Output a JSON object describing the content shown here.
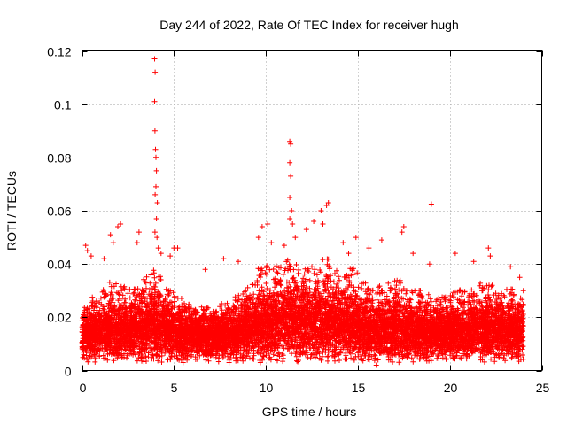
{
  "chart_data": {
    "type": "scatter",
    "title": "Day 244 of 2022, Rate Of TEC Index for receiver hugh",
    "xlabel": "GPS time / hours",
    "ylabel": "ROTI / TECUs",
    "xlim": [
      0,
      25
    ],
    "ylim": [
      0,
      0.12
    ],
    "xticks": [
      0,
      5,
      10,
      15,
      20,
      25
    ],
    "xtick_labels": [
      "0",
      "5",
      "10",
      "15",
      "20",
      "25"
    ],
    "yticks": [
      0,
      0.02,
      0.04,
      0.06,
      0.08,
      0.1,
      0.12
    ],
    "ytick_labels": [
      "0",
      "0.02",
      "0.04",
      "0.06",
      "0.08",
      "0.1",
      "0.12"
    ],
    "grid": true,
    "marker": "+",
    "marker_color": "#ff0000",
    "series": [
      {
        "name": "ROTI",
        "points": [
          [
            3.95,
            0.117
          ],
          [
            3.98,
            0.112
          ],
          [
            3.95,
            0.101
          ],
          [
            3.97,
            0.09
          ],
          [
            4.0,
            0.083
          ],
          [
            4.02,
            0.08
          ],
          [
            4.05,
            0.075
          ],
          [
            4.02,
            0.069
          ],
          [
            3.98,
            0.066
          ],
          [
            4.1,
            0.063
          ],
          [
            4.05,
            0.057
          ],
          [
            3.97,
            0.052
          ],
          [
            4.08,
            0.05
          ],
          [
            4.15,
            0.046
          ],
          [
            4.3,
            0.044
          ],
          [
            11.3,
            0.086
          ],
          [
            11.35,
            0.085
          ],
          [
            11.3,
            0.078
          ],
          [
            11.35,
            0.073
          ],
          [
            11.3,
            0.065
          ],
          [
            11.4,
            0.06
          ],
          [
            11.3,
            0.057
          ],
          [
            11.45,
            0.055
          ],
          [
            11.6,
            0.05
          ],
          [
            19.0,
            0.0625
          ],
          [
            2.1,
            0.055
          ],
          [
            1.95,
            0.054
          ],
          [
            1.55,
            0.051
          ],
          [
            1.7,
            0.048
          ],
          [
            3.1,
            0.052
          ],
          [
            3.0,
            0.048
          ],
          [
            5.2,
            0.046
          ],
          [
            5.0,
            0.046
          ],
          [
            4.8,
            0.043
          ],
          [
            9.8,
            0.054
          ],
          [
            10.1,
            0.055
          ],
          [
            9.6,
            0.05
          ],
          [
            10.3,
            0.048
          ],
          [
            11.0,
            0.047
          ],
          [
            12.2,
            0.053
          ],
          [
            12.6,
            0.056
          ],
          [
            13.1,
            0.055
          ],
          [
            13.3,
            0.062
          ],
          [
            13.4,
            0.063
          ],
          [
            13.0,
            0.06
          ],
          [
            14.9,
            0.05
          ],
          [
            14.2,
            0.048
          ],
          [
            15.6,
            0.046
          ],
          [
            16.3,
            0.049
          ],
          [
            17.5,
            0.054
          ],
          [
            17.4,
            0.052
          ],
          [
            18.0,
            0.044
          ],
          [
            18.9,
            0.04
          ],
          [
            20.3,
            0.044
          ],
          [
            22.1,
            0.046
          ],
          [
            22.2,
            0.043
          ],
          [
            23.3,
            0.039
          ],
          [
            7.7,
            0.042
          ],
          [
            16.0,
            0.002
          ],
          [
            16.1,
            0.004
          ],
          [
            5.5,
            0.003
          ],
          [
            8.0,
            0.003
          ],
          [
            9.7,
            0.003
          ],
          [
            0.2,
            0.047
          ],
          [
            0.3,
            0.045
          ],
          [
            0.5,
            0.043
          ],
          [
            1.2,
            0.042
          ],
          [
            6.7,
            0.038
          ],
          [
            8.5,
            0.041
          ],
          [
            14.5,
            0.044
          ],
          [
            21.3,
            0.041
          ],
          [
            23.8,
            0.035
          ],
          [
            24.0,
            0.03
          ]
        ]
      }
    ],
    "density_bands": [
      {
        "x_start": 0.0,
        "x_end": 0.5,
        "base": 0.0135,
        "spread": 0.004,
        "burst": 0.01
      },
      {
        "x_start": 0.5,
        "x_end": 1.0,
        "base": 0.014,
        "spread": 0.0045,
        "burst": 0.014
      },
      {
        "x_start": 1.0,
        "x_end": 1.5,
        "base": 0.0145,
        "spread": 0.0045,
        "burst": 0.016
      },
      {
        "x_start": 1.5,
        "x_end": 2.0,
        "base": 0.015,
        "spread": 0.005,
        "burst": 0.02
      },
      {
        "x_start": 2.0,
        "x_end": 2.5,
        "base": 0.015,
        "spread": 0.005,
        "burst": 0.018
      },
      {
        "x_start": 2.5,
        "x_end": 3.0,
        "base": 0.015,
        "spread": 0.005,
        "burst": 0.016
      },
      {
        "x_start": 3.0,
        "x_end": 3.5,
        "base": 0.016,
        "spread": 0.0055,
        "burst": 0.02
      },
      {
        "x_start": 3.5,
        "x_end": 4.0,
        "base": 0.017,
        "spread": 0.006,
        "burst": 0.022
      },
      {
        "x_start": 4.0,
        "x_end": 4.5,
        "base": 0.016,
        "spread": 0.006,
        "burst": 0.02
      },
      {
        "x_start": 4.5,
        "x_end": 5.0,
        "base": 0.015,
        "spread": 0.005,
        "burst": 0.016
      },
      {
        "x_start": 5.0,
        "x_end": 5.5,
        "base": 0.014,
        "spread": 0.0045,
        "burst": 0.014
      },
      {
        "x_start": 5.5,
        "x_end": 6.0,
        "base": 0.0135,
        "spread": 0.004,
        "burst": 0.012
      },
      {
        "x_start": 6.0,
        "x_end": 6.5,
        "base": 0.013,
        "spread": 0.004,
        "burst": 0.01
      },
      {
        "x_start": 6.5,
        "x_end": 7.0,
        "base": 0.013,
        "spread": 0.004,
        "burst": 0.012
      },
      {
        "x_start": 7.0,
        "x_end": 7.5,
        "base": 0.013,
        "spread": 0.004,
        "burst": 0.01
      },
      {
        "x_start": 7.5,
        "x_end": 8.0,
        "base": 0.0135,
        "spread": 0.004,
        "burst": 0.012
      },
      {
        "x_start": 8.0,
        "x_end": 8.5,
        "base": 0.014,
        "spread": 0.0045,
        "burst": 0.014
      },
      {
        "x_start": 8.5,
        "x_end": 9.0,
        "base": 0.015,
        "spread": 0.005,
        "burst": 0.016
      },
      {
        "x_start": 9.0,
        "x_end": 9.5,
        "base": 0.016,
        "spread": 0.0055,
        "burst": 0.018
      },
      {
        "x_start": 9.5,
        "x_end": 10.0,
        "base": 0.017,
        "spread": 0.006,
        "burst": 0.022
      },
      {
        "x_start": 10.0,
        "x_end": 10.5,
        "base": 0.0175,
        "spread": 0.006,
        "burst": 0.022
      },
      {
        "x_start": 10.5,
        "x_end": 11.0,
        "base": 0.018,
        "spread": 0.0065,
        "burst": 0.022
      },
      {
        "x_start": 11.0,
        "x_end": 11.5,
        "base": 0.0185,
        "spread": 0.0065,
        "burst": 0.024
      },
      {
        "x_start": 11.5,
        "x_end": 12.0,
        "base": 0.018,
        "spread": 0.0065,
        "burst": 0.022
      },
      {
        "x_start": 12.0,
        "x_end": 12.5,
        "base": 0.018,
        "spread": 0.0065,
        "burst": 0.022
      },
      {
        "x_start": 12.5,
        "x_end": 13.0,
        "base": 0.018,
        "spread": 0.0065,
        "burst": 0.024
      },
      {
        "x_start": 13.0,
        "x_end": 13.5,
        "base": 0.0185,
        "spread": 0.0065,
        "burst": 0.024
      },
      {
        "x_start": 13.5,
        "x_end": 14.0,
        "base": 0.0175,
        "spread": 0.006,
        "burst": 0.022
      },
      {
        "x_start": 14.0,
        "x_end": 14.5,
        "base": 0.017,
        "spread": 0.006,
        "burst": 0.02
      },
      {
        "x_start": 14.5,
        "x_end": 15.0,
        "base": 0.017,
        "spread": 0.006,
        "burst": 0.022
      },
      {
        "x_start": 15.0,
        "x_end": 15.5,
        "base": 0.016,
        "spread": 0.0055,
        "burst": 0.018
      },
      {
        "x_start": 15.5,
        "x_end": 16.0,
        "base": 0.015,
        "spread": 0.005,
        "burst": 0.016
      },
      {
        "x_start": 16.0,
        "x_end": 16.5,
        "base": 0.0145,
        "spread": 0.005,
        "burst": 0.018
      },
      {
        "x_start": 16.5,
        "x_end": 17.0,
        "base": 0.015,
        "spread": 0.005,
        "burst": 0.018
      },
      {
        "x_start": 17.0,
        "x_end": 17.5,
        "base": 0.0155,
        "spread": 0.0055,
        "burst": 0.02
      },
      {
        "x_start": 17.5,
        "x_end": 18.0,
        "base": 0.015,
        "spread": 0.005,
        "burst": 0.018
      },
      {
        "x_start": 18.0,
        "x_end": 18.5,
        "base": 0.0145,
        "spread": 0.005,
        "burst": 0.016
      },
      {
        "x_start": 18.5,
        "x_end": 19.0,
        "base": 0.014,
        "spread": 0.0045,
        "burst": 0.016
      },
      {
        "x_start": 19.0,
        "x_end": 19.5,
        "base": 0.014,
        "spread": 0.0045,
        "burst": 0.014
      },
      {
        "x_start": 19.5,
        "x_end": 20.0,
        "base": 0.014,
        "spread": 0.0045,
        "burst": 0.014
      },
      {
        "x_start": 20.0,
        "x_end": 20.5,
        "base": 0.0145,
        "spread": 0.0045,
        "burst": 0.016
      },
      {
        "x_start": 20.5,
        "x_end": 21.0,
        "base": 0.0145,
        "spread": 0.0045,
        "burst": 0.016
      },
      {
        "x_start": 21.0,
        "x_end": 21.5,
        "base": 0.015,
        "spread": 0.005,
        "burst": 0.016
      },
      {
        "x_start": 21.5,
        "x_end": 22.0,
        "base": 0.015,
        "spread": 0.005,
        "burst": 0.018
      },
      {
        "x_start": 22.0,
        "x_end": 22.5,
        "base": 0.0155,
        "spread": 0.005,
        "burst": 0.018
      },
      {
        "x_start": 22.5,
        "x_end": 23.0,
        "base": 0.015,
        "spread": 0.005,
        "burst": 0.016
      },
      {
        "x_start": 23.0,
        "x_end": 23.5,
        "base": 0.015,
        "spread": 0.005,
        "burst": 0.016
      },
      {
        "x_start": 23.5,
        "x_end": 24.0,
        "base": 0.0145,
        "spread": 0.0045,
        "burst": 0.014
      }
    ]
  }
}
